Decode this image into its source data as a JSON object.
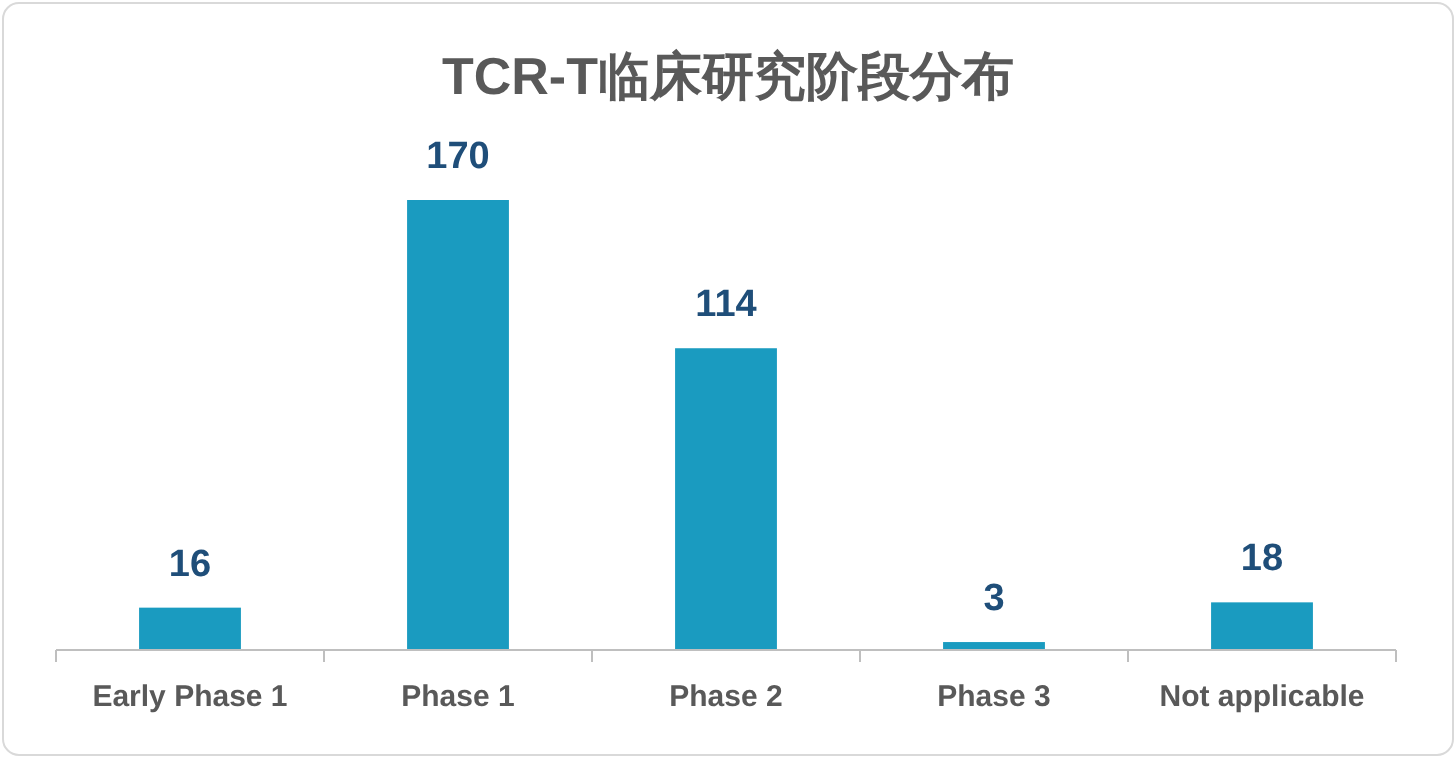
{
  "chart_data": {
    "type": "bar",
    "title": "TCR-T临床研究阶段分布",
    "categories": [
      "Early Phase 1",
      "Phase 1",
      "Phase 2",
      "Phase 3",
      "Not applicable"
    ],
    "values": [
      16,
      170,
      114,
      3,
      18
    ],
    "color": "#1a9bc0",
    "data_labels": true
  }
}
